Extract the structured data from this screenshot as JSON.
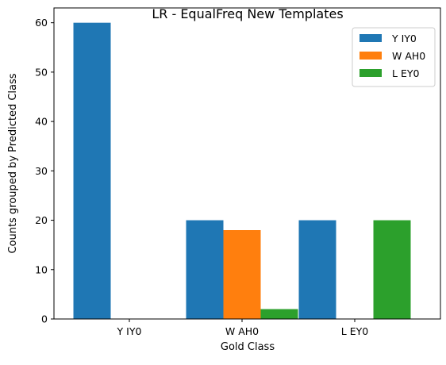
{
  "chart_data": {
    "type": "bar",
    "title": "LR - EqualFreq New Templates",
    "xlabel": "Gold Class",
    "ylabel": "Counts grouped by Predicted Class",
    "categories": [
      "Y IY0",
      "W AH0",
      "L EY0"
    ],
    "series": [
      {
        "name": "Y IY0",
        "color": "#1f77b4",
        "values": [
          60,
          20,
          20
        ]
      },
      {
        "name": "W AH0",
        "color": "#ff7f0e",
        "values": [
          0,
          18,
          0
        ]
      },
      {
        "name": "L EY0",
        "color": "#2ca02c",
        "values": [
          0,
          2,
          20
        ]
      }
    ],
    "ylim": [
      0,
      63
    ],
    "yticks": [
      0,
      10,
      20,
      30,
      40,
      50,
      60
    ],
    "grid": false,
    "legend_position": "top-right"
  }
}
